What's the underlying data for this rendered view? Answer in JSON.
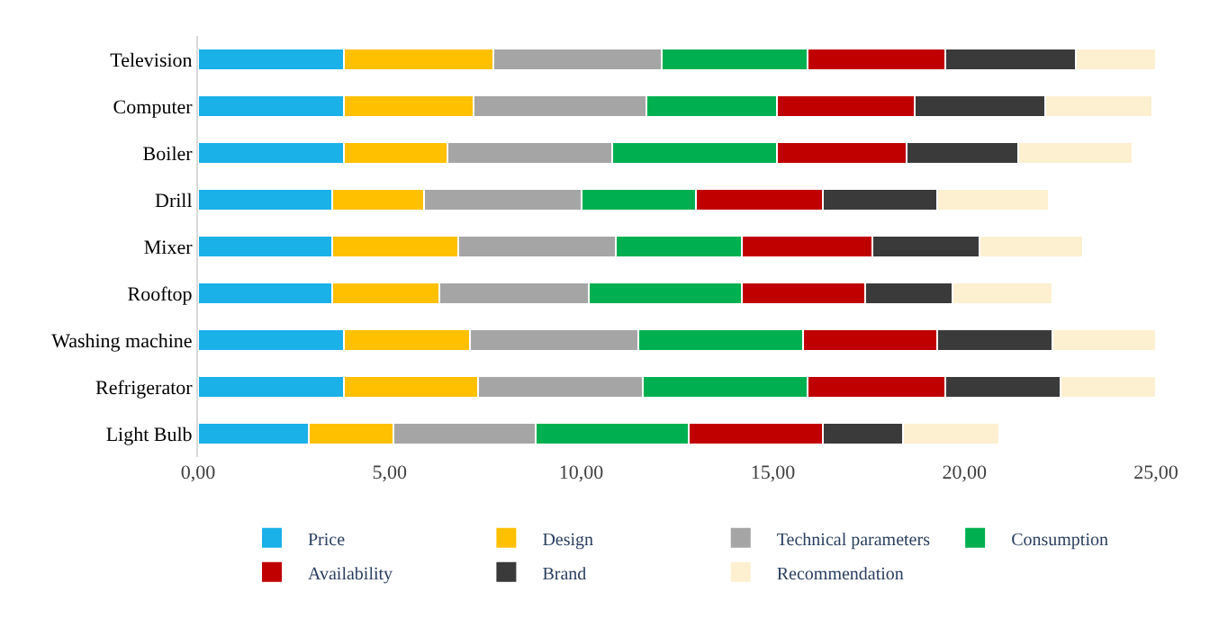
{
  "chart_data": {
    "type": "bar",
    "orientation": "horizontal",
    "stacked": true,
    "categories": [
      "Television",
      "Computer",
      "Boiler",
      "Drill",
      "Mixer",
      "Rooftop",
      "Washing machine",
      "Refrigerator",
      "Light Bulb"
    ],
    "series": [
      {
        "name": "Price",
        "color": "#1ab0e8",
        "values": [
          3.8,
          3.8,
          3.8,
          3.5,
          3.5,
          3.5,
          3.8,
          3.8,
          2.9
        ]
      },
      {
        "name": "Design",
        "color": "#ffc000",
        "values": [
          3.9,
          3.4,
          2.7,
          2.4,
          3.3,
          2.8,
          3.3,
          3.5,
          2.2
        ]
      },
      {
        "name": "Technical parameters",
        "color": "#a5a5a5",
        "values": [
          4.4,
          4.5,
          4.3,
          4.1,
          4.1,
          3.9,
          4.4,
          4.3,
          3.7
        ]
      },
      {
        "name": "Consumption",
        "color": "#00b050",
        "values": [
          3.8,
          3.4,
          4.3,
          3.0,
          3.3,
          4.0,
          4.3,
          4.3,
          4.0
        ]
      },
      {
        "name": "Availability",
        "color": "#c00000",
        "values": [
          3.6,
          3.6,
          3.4,
          3.3,
          3.4,
          3.2,
          3.5,
          3.6,
          3.5
        ]
      },
      {
        "name": "Brand",
        "color": "#3a3a3a",
        "values": [
          3.4,
          3.4,
          2.9,
          3.0,
          2.8,
          2.3,
          3.0,
          3.0,
          2.1
        ]
      },
      {
        "name": "Recommendation",
        "color": "#fdf0d0",
        "values": [
          2.1,
          2.8,
          3.0,
          2.9,
          2.7,
          2.6,
          2.7,
          2.5,
          2.5
        ]
      }
    ],
    "xlim": [
      0,
      25
    ],
    "xticks": [
      {
        "value": 0,
        "label": "0,00"
      },
      {
        "value": 5,
        "label": "5,00"
      },
      {
        "value": 10,
        "label": "10,00"
      },
      {
        "value": 15,
        "label": "15,00"
      },
      {
        "value": 20,
        "label": "20,00"
      },
      {
        "value": 25,
        "label": "25,00"
      }
    ],
    "legend": "bottom"
  }
}
